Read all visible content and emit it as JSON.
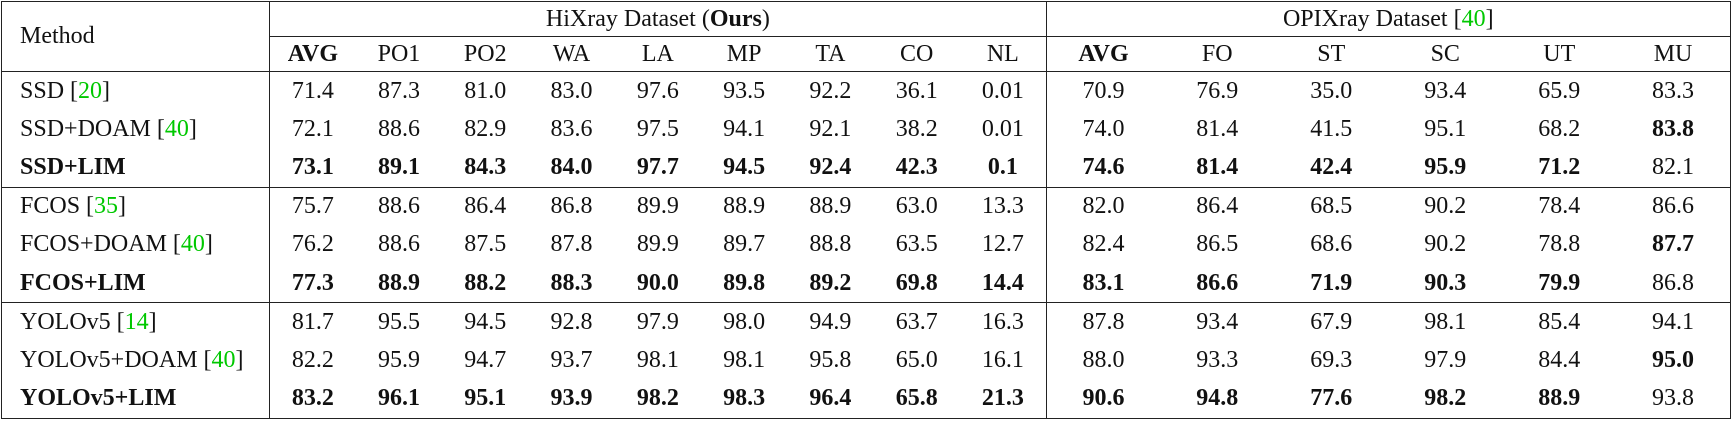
{
  "header": {
    "method": "Method",
    "groups": [
      {
        "title": [
          {
            "text": "HiXray Dataset ("
          },
          {
            "text": "Ours",
            "style": "bold"
          },
          {
            "text": ")"
          }
        ],
        "columns": [
          "AVG",
          "PO1",
          "PO2",
          "WA",
          "LA",
          "MP",
          "TA",
          "CO",
          "NL"
        ],
        "bold_columns": [
          0
        ]
      },
      {
        "title": [
          {
            "text": "OPIXray Dataset ["
          },
          {
            "text": "40",
            "style": "cite"
          },
          {
            "text": "]"
          }
        ],
        "columns": [
          "AVG",
          "FO",
          "ST",
          "SC",
          "UT",
          "MU"
        ],
        "bold_columns": [
          0
        ]
      }
    ]
  },
  "row_groups": [
    {
      "rows": [
        {
          "method": [
            {
              "text": "SSD ["
            },
            {
              "text": "20",
              "style": "cite"
            },
            {
              "text": "]"
            }
          ],
          "values": [
            "71.4",
            "87.3",
            "81.0",
            "83.0",
            "97.6",
            "93.5",
            "92.2",
            "36.1",
            "0.01",
            "70.9",
            "76.9",
            "35.0",
            "93.4",
            "65.9",
            "83.3"
          ],
          "bold": []
        },
        {
          "method": [
            {
              "text": "SSD+DOAM ["
            },
            {
              "text": "40",
              "style": "cite"
            },
            {
              "text": "]"
            }
          ],
          "values": [
            "72.1",
            "88.6",
            "82.9",
            "83.6",
            "97.5",
            "94.1",
            "92.1",
            "38.2",
            "0.01",
            "74.0",
            "81.4",
            "41.5",
            "95.1",
            "68.2",
            "83.8"
          ],
          "bold": [
            14
          ]
        },
        {
          "method": [
            {
              "text": "SSD+LIM",
              "style": "bold"
            }
          ],
          "values": [
            "73.1",
            "89.1",
            "84.3",
            "84.0",
            "97.7",
            "94.5",
            "92.4",
            "42.3",
            "0.1",
            "74.6",
            "81.4",
            "42.4",
            "95.9",
            "71.2",
            "82.1"
          ],
          "bold": [
            0,
            1,
            2,
            3,
            4,
            5,
            6,
            7,
            8,
            9,
            10,
            11,
            12,
            13
          ]
        }
      ]
    },
    {
      "rows": [
        {
          "method": [
            {
              "text": "FCOS ["
            },
            {
              "text": "35",
              "style": "cite"
            },
            {
              "text": "]"
            }
          ],
          "values": [
            "75.7",
            "88.6",
            "86.4",
            "86.8",
            "89.9",
            "88.9",
            "88.9",
            "63.0",
            "13.3",
            "82.0",
            "86.4",
            "68.5",
            "90.2",
            "78.4",
            "86.6"
          ],
          "bold": []
        },
        {
          "method": [
            {
              "text": "FCOS+DOAM ["
            },
            {
              "text": "40",
              "style": "cite"
            },
            {
              "text": "]"
            }
          ],
          "values": [
            "76.2",
            "88.6",
            "87.5",
            "87.8",
            "89.9",
            "89.7",
            "88.8",
            "63.5",
            "12.7",
            "82.4",
            "86.5",
            "68.6",
            "90.2",
            "78.8",
            "87.7"
          ],
          "bold": [
            14
          ]
        },
        {
          "method": [
            {
              "text": "FCOS+LIM",
              "style": "bold"
            }
          ],
          "values": [
            "77.3",
            "88.9",
            "88.2",
            "88.3",
            "90.0",
            "89.8",
            "89.2",
            "69.8",
            "14.4",
            "83.1",
            "86.6",
            "71.9",
            "90.3",
            "79.9",
            "86.8"
          ],
          "bold": [
            0,
            1,
            2,
            3,
            4,
            5,
            6,
            7,
            8,
            9,
            10,
            11,
            12,
            13
          ]
        }
      ]
    },
    {
      "rows": [
        {
          "method": [
            {
              "text": "YOLOv5 ["
            },
            {
              "text": "14",
              "style": "cite"
            },
            {
              "text": "]"
            }
          ],
          "values": [
            "81.7",
            "95.5",
            "94.5",
            "92.8",
            "97.9",
            "98.0",
            "94.9",
            "63.7",
            "16.3",
            "87.8",
            "93.4",
            "67.9",
            "98.1",
            "85.4",
            "94.1"
          ],
          "bold": []
        },
        {
          "method": [
            {
              "text": "YOLOv5+DOAM ["
            },
            {
              "text": "40",
              "style": "cite"
            },
            {
              "text": "]"
            }
          ],
          "values": [
            "82.2",
            "95.9",
            "94.7",
            "93.7",
            "98.1",
            "98.1",
            "95.8",
            "65.0",
            "16.1",
            "88.0",
            "93.3",
            "69.3",
            "97.9",
            "84.4",
            "95.0"
          ],
          "bold": [
            14
          ]
        },
        {
          "method": [
            {
              "text": "YOLOv5+LIM",
              "style": "bold"
            }
          ],
          "values": [
            "83.2",
            "96.1",
            "95.1",
            "93.9",
            "98.2",
            "98.3",
            "96.4",
            "65.8",
            "21.3",
            "90.6",
            "94.8",
            "77.6",
            "98.2",
            "88.9",
            "93.8"
          ],
          "bold": [
            0,
            1,
            2,
            3,
            4,
            5,
            6,
            7,
            8,
            9,
            10,
            11,
            12,
            13
          ]
        }
      ]
    }
  ]
}
